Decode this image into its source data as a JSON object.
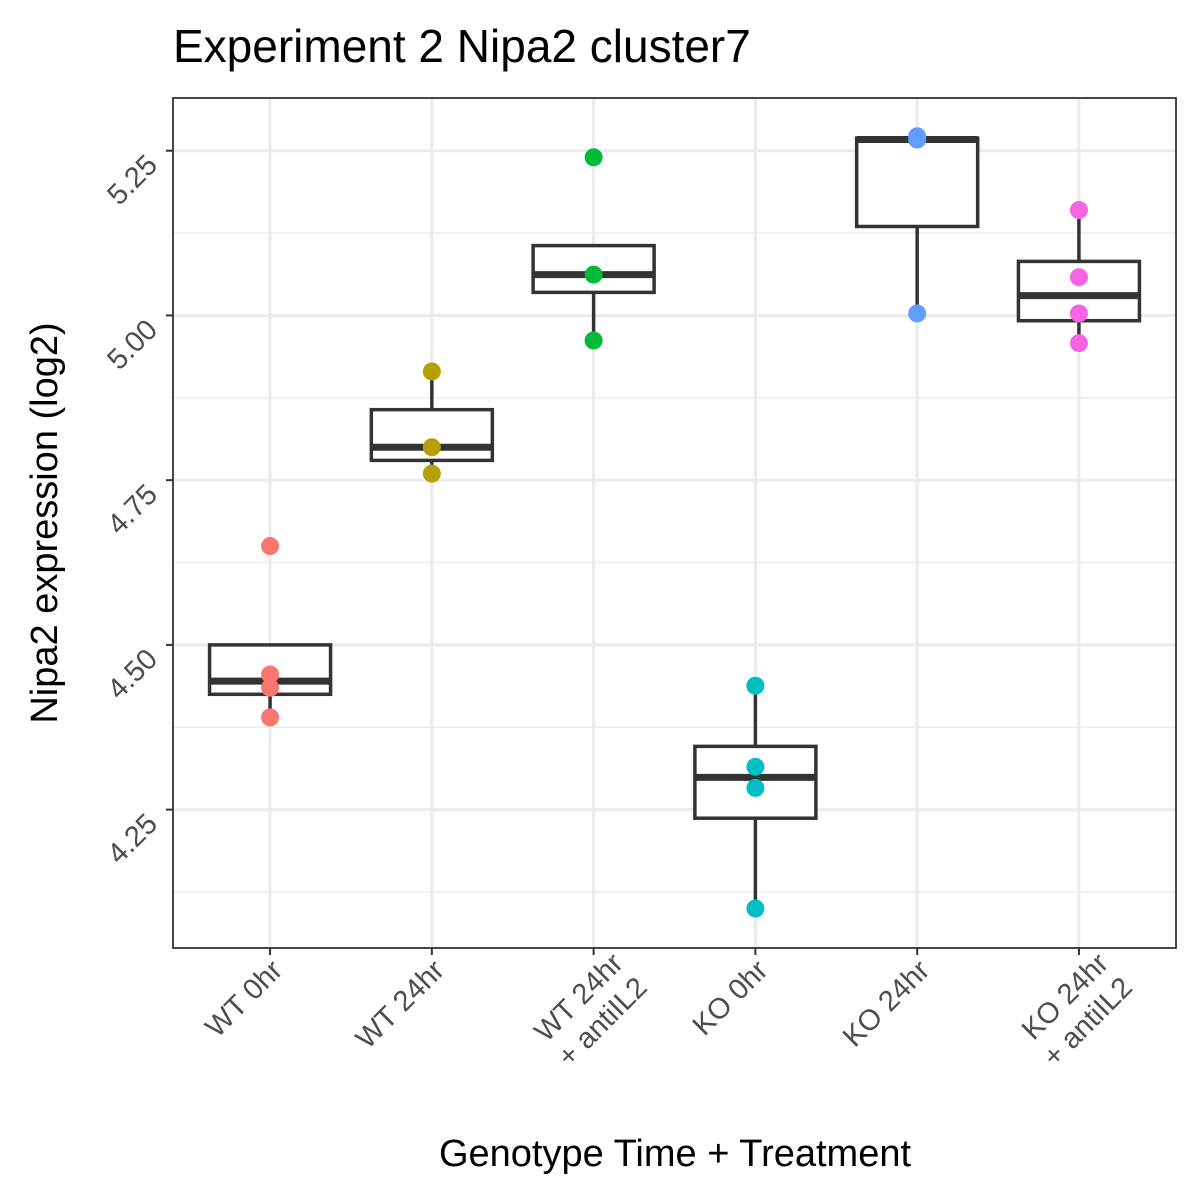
{
  "chart_data": {
    "type": "box",
    "title": "Experiment 2 Nipa2 cluster7",
    "xlabel": "Genotype Time + Treatment",
    "ylabel": "Nipa2 expression (log2)",
    "ylim": [
      4.04,
      5.33
    ],
    "yticks": [
      "4.25",
      "4.50",
      "4.75",
      "5.00",
      "5.25"
    ],
    "ytick_values": [
      4.25,
      4.5,
      4.75,
      5.0,
      5.25
    ],
    "grid": true,
    "legend": "none",
    "categories": [
      {
        "label": [
          "WT 0hr"
        ],
        "color": "#F8766D",
        "points": [
          4.65,
          4.455,
          4.435,
          4.39
        ],
        "box": {
          "lower": 4.39,
          "q1": 4.425,
          "median": 4.445,
          "q3": 4.5,
          "upper": 4.5
        }
      },
      {
        "label": [
          "WT 24hr"
        ],
        "color": "#B79F00",
        "points": [
          4.915,
          4.8,
          4.76
        ],
        "box": {
          "lower": 4.76,
          "q1": 4.78,
          "median": 4.8,
          "q3": 4.857,
          "upper": 4.915
        }
      },
      {
        "label": [
          "WT 24hr",
          "+ antiIL2"
        ],
        "color": "#00BA38",
        "points": [
          5.24,
          5.062,
          4.962
        ],
        "box": {
          "lower": 4.962,
          "q1": 5.035,
          "median": 5.062,
          "q3": 5.106,
          "upper": 5.106
        }
      },
      {
        "label": [
          "KO 0hr"
        ],
        "color": "#00BFC4",
        "points": [
          4.438,
          4.315,
          4.283,
          4.1
        ],
        "box": {
          "lower": 4.1,
          "q1": 4.237,
          "median": 4.299,
          "q3": 4.346,
          "upper": 4.438
        }
      },
      {
        "label": [
          "KO 24hr"
        ],
        "color": "#619CFF",
        "points": [
          5.272,
          5.267,
          5.003
        ],
        "box": {
          "lower": 5.003,
          "q1": 5.135,
          "median": 5.267,
          "q3": 5.269,
          "upper": 5.269
        }
      },
      {
        "label": [
          "KO 24hr",
          "+ antiIL2"
        ],
        "color": "#F564E3",
        "points": [
          5.16,
          5.058,
          5.003,
          4.958
        ],
        "box": {
          "lower": 4.958,
          "q1": 4.992,
          "median": 5.03,
          "q3": 5.082,
          "upper": 5.16
        }
      }
    ]
  }
}
